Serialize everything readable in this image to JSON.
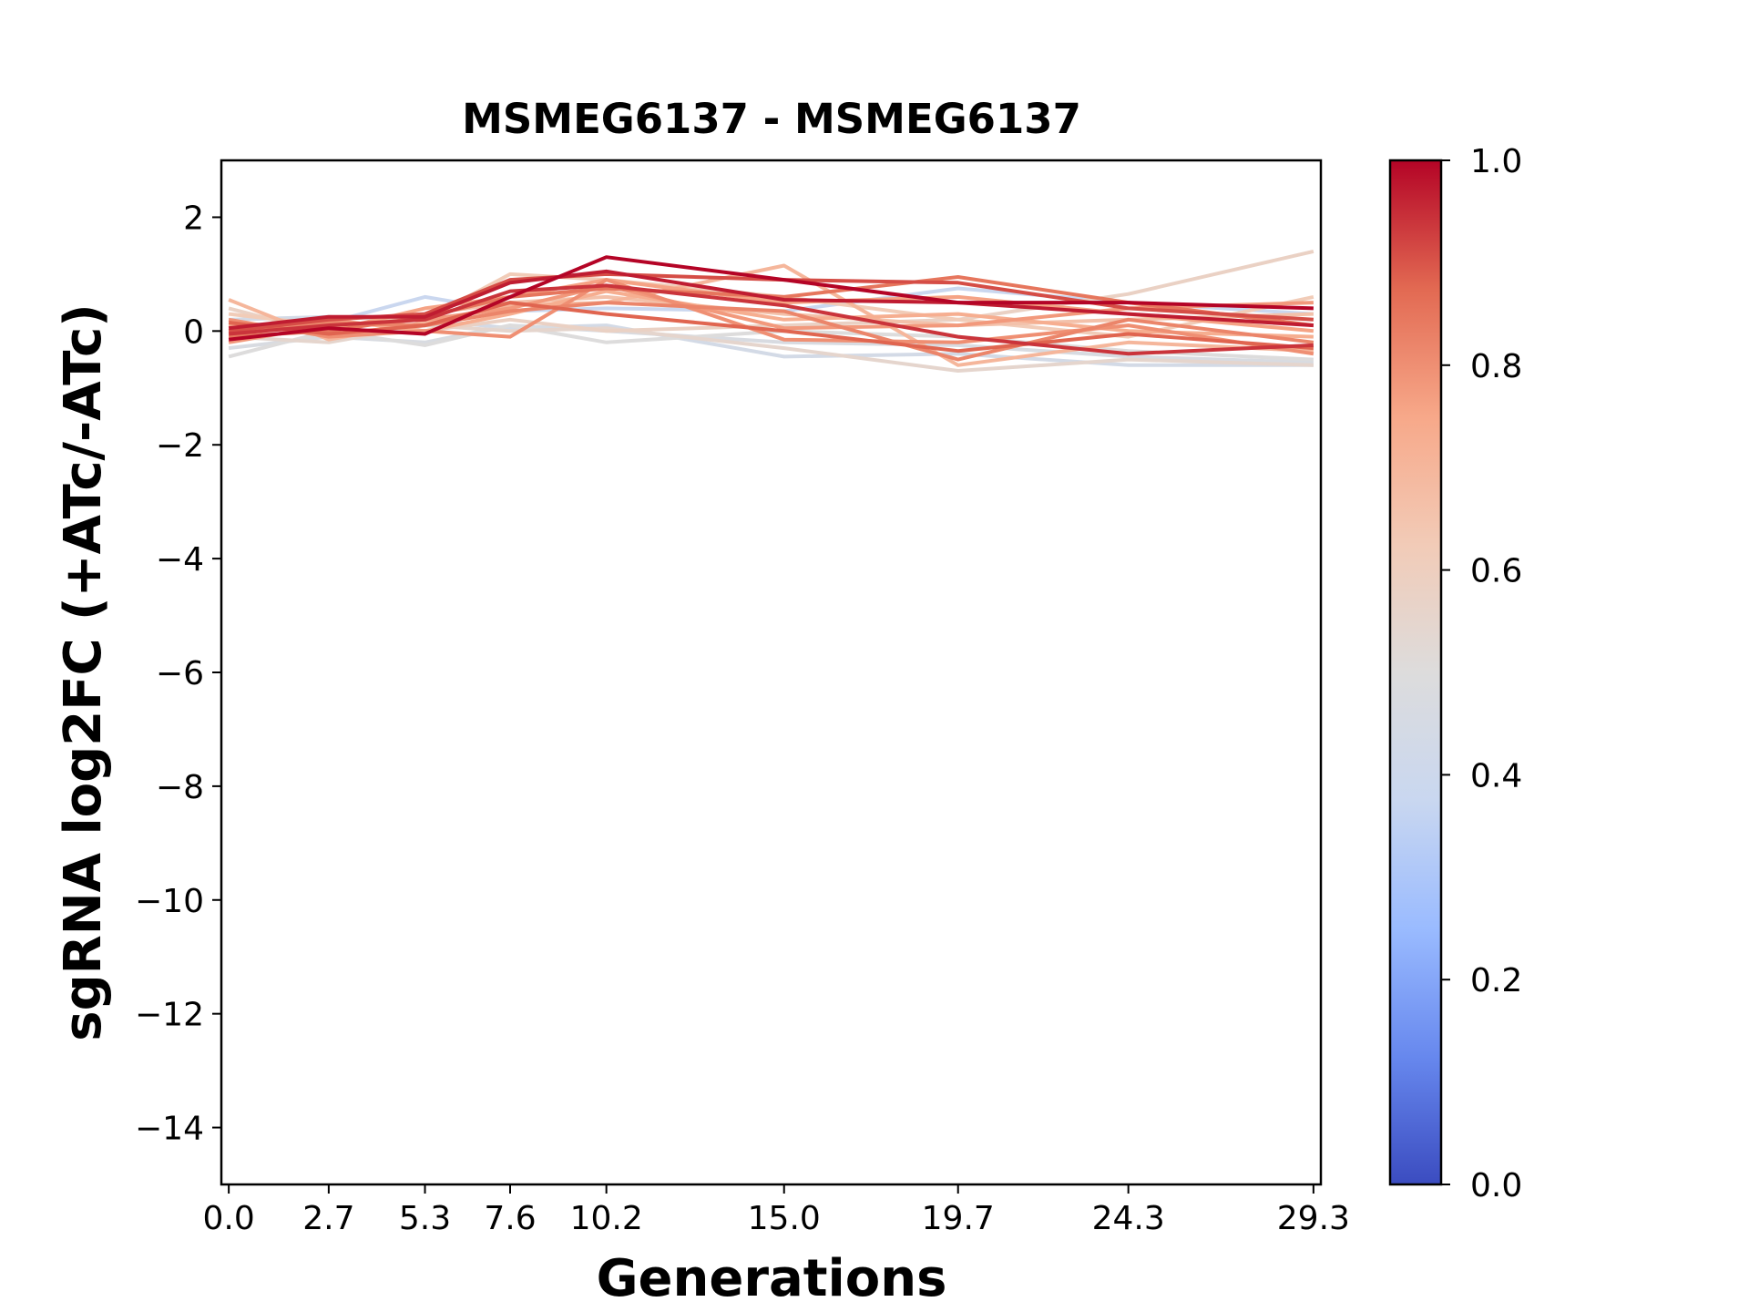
{
  "chart_data": {
    "type": "line",
    "title": "MSMEG6137 - MSMEG6137",
    "xlabel": "Generations",
    "ylabel": "sgRNA log2FC (+ATc/-ATc)",
    "x": [
      0.0,
      2.7,
      5.3,
      7.6,
      10.2,
      15.0,
      19.7,
      24.3,
      29.3
    ],
    "x_tick_labels": [
      "0.0",
      "2.7",
      "5.3",
      "7.6",
      "10.2",
      "15.0",
      "19.7",
      "24.3",
      "29.3"
    ],
    "xlim": [
      -0.2,
      29.5
    ],
    "ylim": [
      -15,
      3
    ],
    "y_ticks": [
      2,
      0,
      -2,
      -4,
      -6,
      -8,
      -10,
      -12,
      -14
    ],
    "y_tick_labels": [
      "2",
      "0",
      "−2",
      "−4",
      "−6",
      "−8",
      "−10",
      "−12",
      "−14"
    ],
    "grid": false,
    "colorbar": {
      "colormap": "coolwarm",
      "range": [
        0.0,
        1.0
      ],
      "ticks": [
        0.0,
        0.2,
        0.4,
        0.6,
        0.8,
        1.0
      ],
      "tick_labels": [
        "0.0",
        "0.2",
        "0.4",
        "0.6",
        "0.8",
        "1.0"
      ],
      "stops": [
        "#3b4cc0",
        "#6788ee",
        "#9abbff",
        "#c9d7f0",
        "#dddcdc",
        "#f2cbb7",
        "#f7a889",
        "#e26952",
        "#b40426"
      ]
    },
    "series": [
      {
        "color_value": 0.38,
        "values": [
          0.1,
          0.15,
          0.6,
          0.35,
          0.4,
          0.35,
          0.75,
          0.5,
          0.3
        ]
      },
      {
        "color_value": 0.44,
        "values": [
          0.2,
          0.25,
          0.2,
          0.05,
          0.1,
          -0.45,
          -0.4,
          -0.6,
          -0.6
        ]
      },
      {
        "color_value": 0.47,
        "values": [
          -0.3,
          -0.1,
          -0.2,
          0.1,
          0.0,
          -0.2,
          -0.25,
          -0.45,
          -0.55
        ]
      },
      {
        "color_value": 0.5,
        "values": [
          -0.45,
          0.0,
          -0.25,
          0.1,
          -0.2,
          0.0,
          -0.1,
          -0.35,
          -0.5
        ]
      },
      {
        "color_value": 0.55,
        "values": [
          -0.1,
          -0.2,
          0.1,
          0.0,
          0.05,
          -0.3,
          -0.7,
          -0.5,
          -0.6
        ]
      },
      {
        "color_value": 0.58,
        "values": [
          0.4,
          -0.05,
          0.0,
          0.2,
          0.0,
          0.1,
          0.2,
          0.65,
          1.4
        ]
      },
      {
        "color_value": 0.62,
        "values": [
          0.3,
          0.1,
          0.2,
          1.0,
          0.9,
          0.6,
          0.2,
          -0.1,
          0.6
        ]
      },
      {
        "color_value": 0.66,
        "values": [
          0.0,
          0.05,
          0.3,
          0.5,
          0.6,
          0.3,
          0.1,
          0.2,
          0.3
        ]
      },
      {
        "color_value": 0.7,
        "values": [
          0.55,
          -0.15,
          0.15,
          0.45,
          0.5,
          1.15,
          -0.6,
          -0.2,
          -0.35
        ]
      },
      {
        "color_value": 0.73,
        "values": [
          -0.05,
          0.2,
          0.0,
          0.3,
          0.7,
          0.2,
          0.3,
          0.0,
          -0.1
        ]
      },
      {
        "color_value": 0.76,
        "values": [
          0.1,
          0.0,
          0.4,
          0.6,
          0.9,
          0.5,
          0.6,
          0.3,
          0.0
        ]
      },
      {
        "color_value": 0.78,
        "values": [
          -0.2,
          0.1,
          0.2,
          0.4,
          0.8,
          0.05,
          0.1,
          0.4,
          0.5
        ]
      },
      {
        "color_value": 0.8,
        "values": [
          0.2,
          -0.1,
          0.0,
          -0.1,
          0.9,
          -0.15,
          -0.2,
          0.1,
          -0.4
        ]
      },
      {
        "color_value": 0.82,
        "values": [
          0.0,
          0.15,
          0.1,
          0.35,
          0.5,
          0.35,
          -0.5,
          0.2,
          -0.2
        ]
      },
      {
        "color_value": 0.85,
        "values": [
          -0.1,
          0.0,
          0.25,
          0.6,
          0.75,
          0.6,
          0.95,
          0.5,
          0.1
        ]
      },
      {
        "color_value": 0.88,
        "values": [
          0.15,
          -0.05,
          0.1,
          0.5,
          0.3,
          0.0,
          -0.35,
          -0.05,
          -0.3
        ]
      },
      {
        "color_value": 0.91,
        "values": [
          0.0,
          0.2,
          0.3,
          0.9,
          1.0,
          0.9,
          0.85,
          0.4,
          0.2
        ]
      },
      {
        "color_value": 0.94,
        "values": [
          -0.05,
          0.1,
          0.2,
          0.7,
          0.8,
          0.45,
          -0.1,
          -0.4,
          -0.25
        ]
      },
      {
        "color_value": 0.97,
        "values": [
          0.05,
          0.25,
          0.25,
          0.85,
          1.05,
          0.55,
          0.5,
          0.3,
          0.1
        ]
      },
      {
        "color_value": 1.0,
        "values": [
          -0.15,
          0.05,
          -0.05,
          0.6,
          1.3,
          0.9,
          0.5,
          0.5,
          0.4
        ]
      }
    ]
  }
}
